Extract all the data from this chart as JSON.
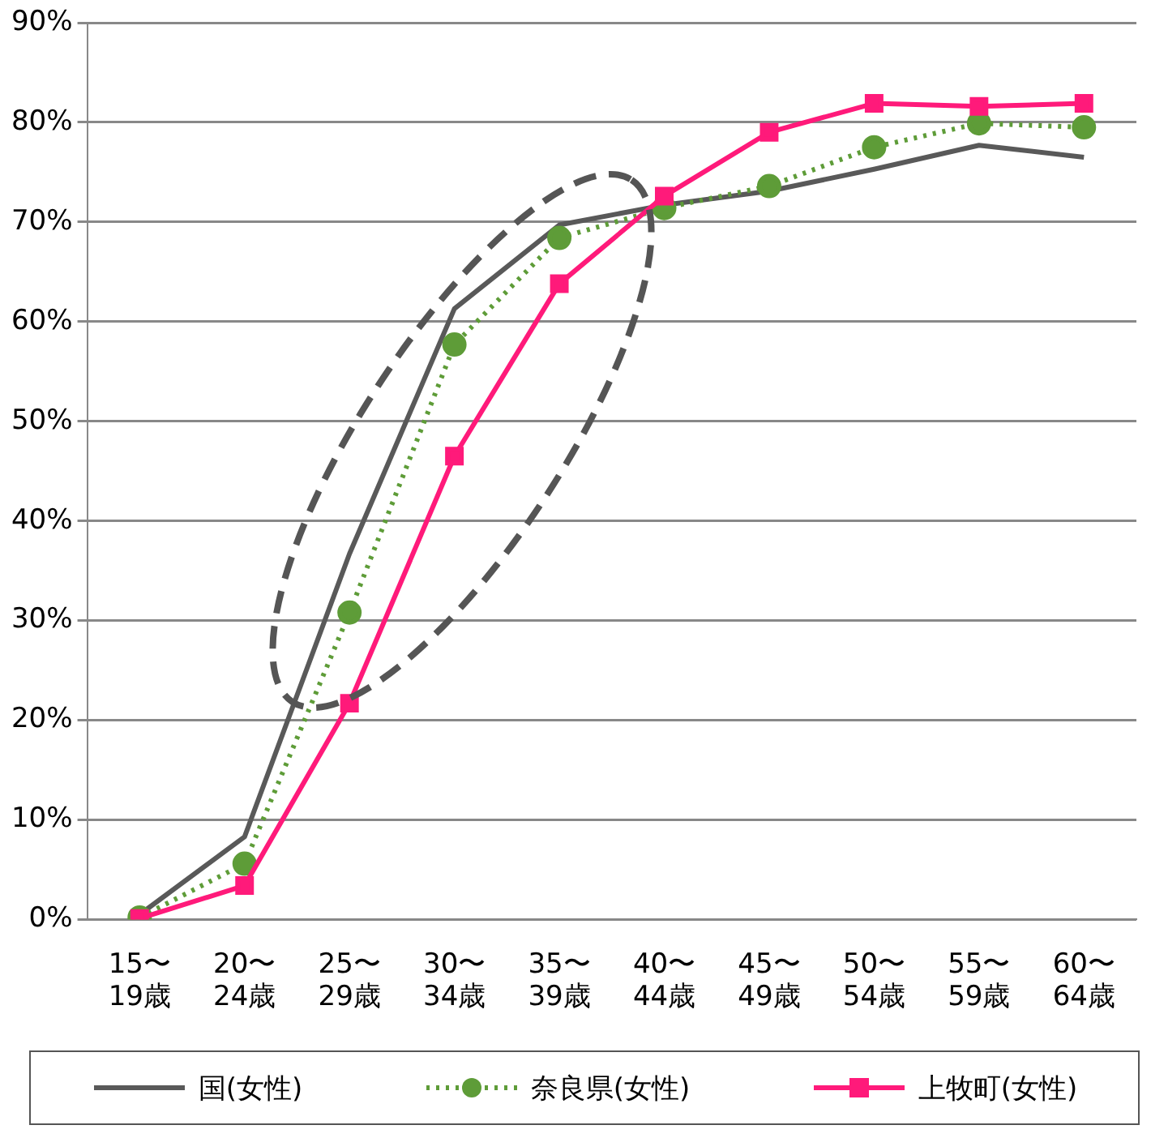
{
  "chart_data": {
    "type": "line",
    "categories": [
      "15〜\n19歳",
      "20〜\n24歳",
      "25〜\n29歳",
      "30〜\n34歳",
      "35〜\n39歳",
      "40〜\n44歳",
      "45〜\n49歳",
      "50〜\n54歳",
      "55〜\n59歳",
      "60〜\n64歳"
    ],
    "series": [
      {
        "name": "国(女性)",
        "color": "#595959",
        "marker": "none",
        "line_style": "solid",
        "values": [
          0.5,
          8.3,
          36.7,
          61.3,
          69.7,
          71.7,
          73.1,
          75.3,
          77.7,
          76.5
        ]
      },
      {
        "name": "奈良県(女性)",
        "color": "#5e9c38",
        "marker": "circle",
        "line_style": "dotted",
        "values": [
          0.2,
          5.6,
          30.8,
          57.7,
          68.4,
          71.4,
          73.6,
          77.5,
          79.9,
          79.5
        ]
      },
      {
        "name": "上牧町(女性)",
        "color": "#ff1a7a",
        "marker": "square",
        "line_style": "solid",
        "values": [
          0.1,
          3.4,
          21.7,
          46.5,
          63.8,
          72.6,
          79,
          81.9,
          81.6,
          81.9
        ]
      }
    ],
    "ylim": [
      0,
      90
    ],
    "yticks": [
      {
        "value": 0,
        "label": "0%"
      },
      {
        "value": 10,
        "label": "10%"
      },
      {
        "value": 20,
        "label": "20%"
      },
      {
        "value": 30,
        "label": "30%"
      },
      {
        "value": 40,
        "label": "40%"
      },
      {
        "value": 50,
        "label": "50%"
      },
      {
        "value": 60,
        "label": "60%"
      },
      {
        "value": 70,
        "label": "70%"
      },
      {
        "value": 80,
        "label": "80%"
      },
      {
        "value": 90,
        "label": "90%"
      }
    ],
    "grid": "y",
    "legend": "bottom"
  }
}
